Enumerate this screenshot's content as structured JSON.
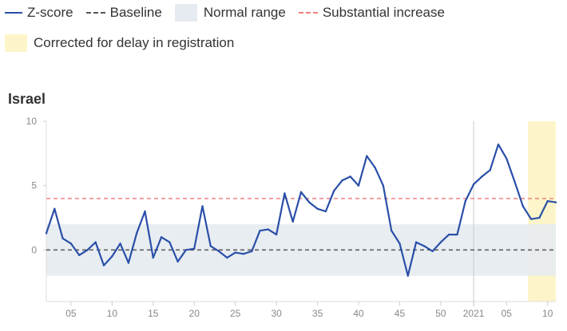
{
  "legend": {
    "zscore": "Z-score",
    "baseline": "Baseline",
    "normal_range": "Normal range",
    "substantial_increase": "Substantial increase",
    "corrected": "Corrected for delay in registration"
  },
  "colors": {
    "line": "#2a4fa8",
    "normal_band": "#e6ebf1",
    "threshold": "#f08080",
    "baseline": "#555555",
    "corrected_band": "#fdf5c9",
    "axis": "#dddddd"
  },
  "chart_data": {
    "type": "line",
    "title": "Israel",
    "xlabel": "",
    "ylabel": "",
    "ylim": [
      -4,
      10
    ],
    "yticks": [
      0,
      5,
      10
    ],
    "ytick_labels": [
      "0",
      "5",
      "10"
    ],
    "baseline": 0,
    "normal_range": [
      -2,
      2
    ],
    "substantial_increase_threshold": 4,
    "x_ticks": [
      {
        "index": 3,
        "label": "05"
      },
      {
        "index": 8,
        "label": "10"
      },
      {
        "index": 13,
        "label": "15"
      },
      {
        "index": 18,
        "label": "20"
      },
      {
        "index": 23,
        "label": "25"
      },
      {
        "index": 28,
        "label": "30"
      },
      {
        "index": 33,
        "label": "35"
      },
      {
        "index": 38,
        "label": "40"
      },
      {
        "index": 43,
        "label": "45"
      },
      {
        "index": 48,
        "label": "50"
      },
      {
        "index": 52,
        "label": "2021"
      },
      {
        "index": 56,
        "label": "05"
      },
      {
        "index": 61,
        "label": "10"
      }
    ],
    "year_divider_index": 52,
    "corrected_from_index": 59,
    "series": [
      {
        "name": "Z-score",
        "x": [
          0,
          1,
          2,
          3,
          4,
          5,
          6,
          7,
          8,
          9,
          10,
          11,
          12,
          13,
          14,
          15,
          16,
          17,
          18,
          19,
          20,
          21,
          22,
          23,
          24,
          25,
          26,
          27,
          28,
          29,
          30,
          31,
          32,
          33,
          34,
          35,
          36,
          37,
          38,
          39,
          40,
          41,
          42,
          43,
          44,
          45,
          46,
          47,
          48,
          49,
          50,
          51,
          52,
          53,
          54,
          55,
          56,
          57,
          58,
          59,
          60,
          61,
          62
        ],
        "values": [
          1.3,
          3.2,
          0.9,
          0.5,
          -0.4,
          0,
          0.6,
          -1.2,
          -0.5,
          0.5,
          -1,
          1.3,
          3,
          -0.6,
          1,
          0.6,
          -0.9,
          0,
          0.1,
          3.4,
          0.3,
          -0.1,
          -0.6,
          -0.2,
          -0.3,
          -0.1,
          1.5,
          1.6,
          1.2,
          4.4,
          2.2,
          4.5,
          3.7,
          3.2,
          3,
          4.6,
          5.4,
          5.7,
          5,
          7.3,
          6.4,
          5,
          1.5,
          0.5,
          -2,
          0.6,
          0.3,
          -0.1,
          0.6,
          1.2,
          1.2,
          3.8,
          5.1,
          5.7,
          6.2,
          8.2,
          7.1,
          5.3,
          3.4,
          2.4,
          2.5,
          3.8,
          3.7
        ]
      }
    ]
  }
}
